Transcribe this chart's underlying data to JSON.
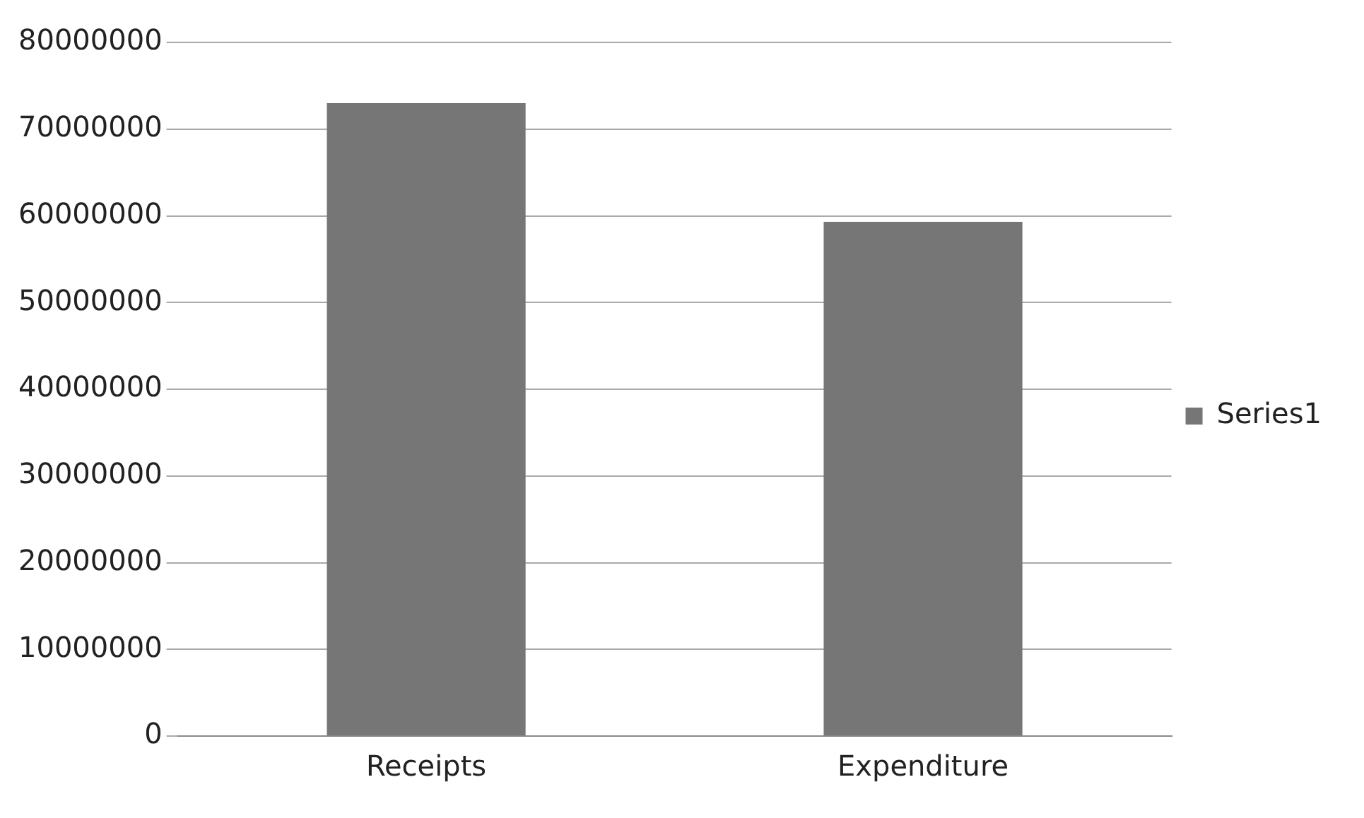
{
  "chart_data": {
    "type": "bar",
    "categories": [
      "Receipts",
      "Expenditure"
    ],
    "series": [
      {
        "name": "Series1",
        "color": "#767676",
        "values": [
          73000000,
          59300000
        ]
      }
    ],
    "ylim": [
      0,
      80000000
    ],
    "yticks": [
      0,
      10000000,
      20000000,
      30000000,
      40000000,
      50000000,
      60000000,
      70000000,
      80000000
    ],
    "grid": "y",
    "legend": "right"
  }
}
